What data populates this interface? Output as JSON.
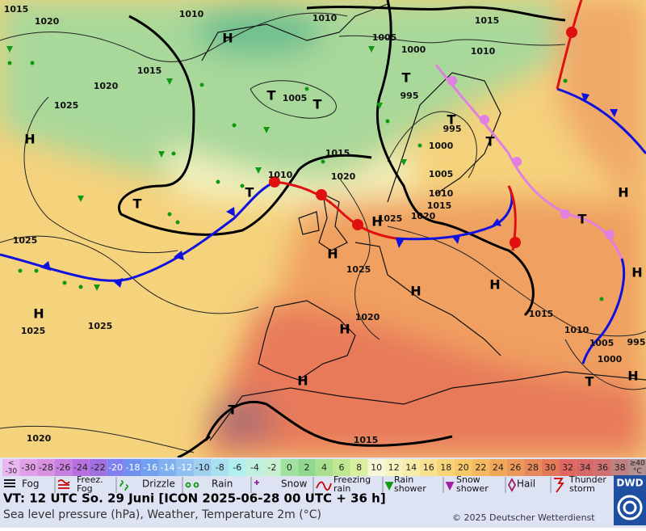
{
  "map": {
    "pressure_labels": [
      "1015",
      "1020",
      "1010",
      "1010",
      "1015",
      "1005",
      "1000",
      "1010",
      "1020",
      "1015",
      "1025",
      "995",
      "1005",
      "995",
      "1000",
      "1015",
      "1005",
      "1010",
      "1020",
      "1010",
      "1015",
      "1025",
      "1020",
      "1025",
      "1025",
      "1020",
      "1015",
      "1010",
      "1025",
      "1025",
      "1005",
      "1000",
      "995",
      "1020",
      "1015"
    ],
    "highs": [
      "H",
      "H",
      "H",
      "H",
      "H",
      "H",
      "H",
      "H",
      "H",
      "H",
      "H",
      "H"
    ],
    "lows": [
      "T",
      "T",
      "T",
      "T",
      "T",
      "T",
      "T",
      "T",
      "T",
      "T"
    ]
  },
  "legend": {
    "temperature_scale": [
      {
        "label": [
          "<",
          "-30"
        ],
        "color": "#e9b6f0"
      },
      {
        "label": -30,
        "color": "#e0a0e8"
      },
      {
        "label": -28,
        "color": "#d890e0"
      },
      {
        "label": -26,
        "color": "#c880e0"
      },
      {
        "label": -24,
        "color": "#b870e0"
      },
      {
        "label": -22,
        "color": "#a070e0"
      },
      {
        "label": -20,
        "color": "#8080f0"
      },
      {
        "label": -18,
        "color": "#7090f0"
      },
      {
        "label": -16,
        "color": "#70a0f0"
      },
      {
        "label": -14,
        "color": "#80b0f0"
      },
      {
        "label": -12,
        "color": "#90c0f0"
      },
      {
        "label": -10,
        "color": "#a0d0f0"
      },
      {
        "label": -8,
        "color": "#a8e0f0"
      },
      {
        "label": -6,
        "color": "#b0f0f0"
      },
      {
        "label": -4,
        "color": "#c0f0e0"
      },
      {
        "label": -2,
        "color": "#c8f0d0"
      },
      {
        "label": 0,
        "color": "#a0e0a0"
      },
      {
        "label": 2,
        "color": "#90d890"
      },
      {
        "label": 4,
        "color": "#a8e090"
      },
      {
        "label": 6,
        "color": "#c0e890"
      },
      {
        "label": 8,
        "color": "#d8f0a0"
      },
      {
        "label": 10,
        "color": "#f8f8d8"
      },
      {
        "label": 12,
        "color": "#f8f4c0"
      },
      {
        "label": 14,
        "color": "#f8eca8"
      },
      {
        "label": 16,
        "color": "#f8e090"
      },
      {
        "label": 18,
        "color": "#f8d478"
      },
      {
        "label": 20,
        "color": "#f8c868"
      },
      {
        "label": 22,
        "color": "#f4b860"
      },
      {
        "label": 24,
        "color": "#f0a858"
      },
      {
        "label": 26,
        "color": "#ec9858"
      },
      {
        "label": 28,
        "color": "#e88858"
      },
      {
        "label": 30,
        "color": "#e47858"
      },
      {
        "label": 32,
        "color": "#e06860"
      },
      {
        "label": 34,
        "color": "#d86868"
      },
      {
        "label": 36,
        "color": "#d07070"
      },
      {
        "label": 38,
        "color": "#c08080"
      },
      {
        "label": [
          "≥40",
          "°C"
        ],
        "color": "#b09090"
      }
    ],
    "weather": [
      [
        "Fog"
      ],
      [
        "Freez.",
        "Fog"
      ],
      [
        "Drizzle"
      ],
      [
        "Rain"
      ],
      [
        "Snow"
      ],
      [
        "Freezing",
        "rain"
      ],
      [
        "Rain",
        "shower"
      ],
      [
        "Snow",
        "shower"
      ],
      [
        "Hail"
      ],
      [
        "Thunder",
        "storm"
      ]
    ]
  },
  "footer": {
    "valid_time": "VT: 12 UTC So.  29 Juni [ICON 2025-06-28  00 UTC + 36 h]",
    "subtitle": "Sea level pressure (hPa), Weather, Temperature 2m (°C)",
    "copyright": "© 2025 Deutscher Wetterdienst",
    "logo": "DWD"
  }
}
